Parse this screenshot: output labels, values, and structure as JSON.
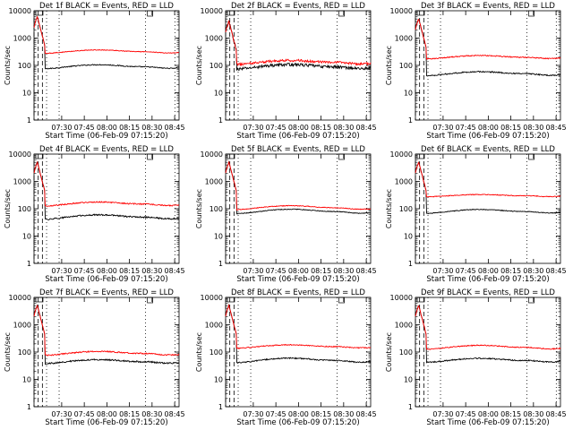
{
  "chart_data": [
    {
      "type": "line",
      "title": "Det 1f BLACK = Events, RED = LLD",
      "xlabel": "Start Time (06-Feb-09 07:15:20)",
      "ylabel": "Counts/sec",
      "y_scale": "log",
      "ylim": [
        1,
        10000
      ],
      "xlim": [
        0,
        5200
      ],
      "x_tick_labels": [
        "07:30",
        "07:45",
        "08:00",
        "08:15",
        "08:30",
        "08:45"
      ],
      "y_tick_labels": [
        "1",
        "10",
        "100",
        "1000",
        "10000"
      ],
      "grid": false,
      "series": [
        {
          "name": "Events",
          "color": "#000000",
          "baseline": 90,
          "peak": 6000,
          "noise": 0.04,
          "bump": 0.35
        },
        {
          "name": "LLD",
          "color": "#ff0000",
          "baseline": 320,
          "peak": 6000,
          "noise": 0.03,
          "bump": 0.3
        }
      ]
    },
    {
      "type": "line",
      "title": "Det 2f BLACK = Events, RED = LLD",
      "xlabel": "Start Time (06-Feb-09 07:15:20)",
      "ylabel": "Counts/sec",
      "y_scale": "log",
      "ylim": [
        1,
        10000
      ],
      "xlim": [
        0,
        5200
      ],
      "x_tick_labels": [
        "07:30",
        "07:45",
        "08:00",
        "08:15",
        "08:30",
        "08:45"
      ],
      "y_tick_labels": [
        "1",
        "10",
        "100",
        "1000",
        "10000"
      ],
      "grid": false,
      "series": [
        {
          "name": "Events",
          "color": "#000000",
          "baseline": 90,
          "peak": 4000,
          "noise": 0.12,
          "bump": 0.4
        },
        {
          "name": "LLD",
          "color": "#ff0000",
          "baseline": 130,
          "peak": 4000,
          "noise": 0.1,
          "bump": 0.35
        }
      ]
    },
    {
      "type": "line",
      "title": "Det 3f BLACK = Events, RED = LLD",
      "xlabel": "Start Time (06-Feb-09 07:15:20)",
      "ylabel": "Counts/sec",
      "y_scale": "log",
      "ylim": [
        1,
        10000
      ],
      "xlim": [
        0,
        5200
      ],
      "x_tick_labels": [
        "07:30",
        "07:45",
        "08:00",
        "08:15",
        "08:30",
        "08:45"
      ],
      "y_tick_labels": [
        "1",
        "10",
        "100",
        "1000",
        "10000"
      ],
      "grid": false,
      "series": [
        {
          "name": "Events",
          "color": "#000000",
          "baseline": 50,
          "peak": 5000,
          "noise": 0.05,
          "bump": 0.35
        },
        {
          "name": "LLD",
          "color": "#ff0000",
          "baseline": 200,
          "peak": 5000,
          "noise": 0.04,
          "bump": 0.3
        }
      ]
    },
    {
      "type": "line",
      "title": "Det 4f BLACK = Events, RED = LLD",
      "xlabel": "Start Time (06-Feb-09 07:15:20)",
      "ylabel": "Counts/sec",
      "y_scale": "log",
      "ylim": [
        1,
        10000
      ],
      "xlim": [
        0,
        5200
      ],
      "x_tick_labels": [
        "07:30",
        "07:45",
        "08:00",
        "08:15",
        "08:30",
        "08:45"
      ],
      "y_tick_labels": [
        "1",
        "10",
        "100",
        "1000",
        "10000"
      ],
      "grid": false,
      "series": [
        {
          "name": "Events",
          "color": "#000000",
          "baseline": 50,
          "peak": 5000,
          "noise": 0.06,
          "bump": 0.4
        },
        {
          "name": "LLD",
          "color": "#ff0000",
          "baseline": 150,
          "peak": 5000,
          "noise": 0.05,
          "bump": 0.35
        }
      ]
    },
    {
      "type": "line",
      "title": "Det 5f BLACK = Events, RED = LLD",
      "xlabel": "Start Time (06-Feb-09 07:15:20)",
      "ylabel": "Counts/sec",
      "y_scale": "log",
      "ylim": [
        1,
        10000
      ],
      "xlim": [
        0,
        5200
      ],
      "x_tick_labels": [
        "07:30",
        "07:45",
        "08:00",
        "08:15",
        "08:30",
        "08:45"
      ],
      "y_tick_labels": [
        "1",
        "10",
        "100",
        "1000",
        "10000"
      ],
      "grid": false,
      "series": [
        {
          "name": "Events",
          "color": "#000000",
          "baseline": 80,
          "peak": 5000,
          "noise": 0.03,
          "bump": 0.4
        },
        {
          "name": "LLD",
          "color": "#ff0000",
          "baseline": 110,
          "peak": 5000,
          "noise": 0.03,
          "bump": 0.35
        }
      ]
    },
    {
      "type": "line",
      "title": "Det 6f BLACK = Events, RED = LLD",
      "xlabel": "Start Time (06-Feb-09 07:15:20)",
      "ylabel": "Counts/sec",
      "y_scale": "log",
      "ylim": [
        1,
        10000
      ],
      "xlim": [
        0,
        5200
      ],
      "x_tick_labels": [
        "07:30",
        "07:45",
        "08:00",
        "08:15",
        "08:30",
        "08:45"
      ],
      "y_tick_labels": [
        "1",
        "10",
        "100",
        "1000",
        "10000"
      ],
      "grid": false,
      "series": [
        {
          "name": "Events",
          "color": "#000000",
          "baseline": 80,
          "peak": 5000,
          "noise": 0.03,
          "bump": 0.35
        },
        {
          "name": "LLD",
          "color": "#ff0000",
          "baseline": 300,
          "peak": 5000,
          "noise": 0.03,
          "bump": 0.2
        }
      ]
    },
    {
      "type": "line",
      "title": "Det 7f BLACK = Events, RED = LLD",
      "xlabel": "Start Time (06-Feb-09 07:15:20)",
      "ylabel": "Counts/sec",
      "y_scale": "log",
      "ylim": [
        1,
        10000
      ],
      "xlim": [
        0,
        5200
      ],
      "x_tick_labels": [
        "07:30",
        "07:45",
        "08:00",
        "08:15",
        "08:30",
        "08:45"
      ],
      "y_tick_labels": [
        "1",
        "10",
        "100",
        "1000",
        "10000"
      ],
      "grid": false,
      "series": [
        {
          "name": "Events",
          "color": "#000000",
          "baseline": 45,
          "peak": 5000,
          "noise": 0.06,
          "bump": 0.35
        },
        {
          "name": "LLD",
          "color": "#ff0000",
          "baseline": 90,
          "peak": 5000,
          "noise": 0.05,
          "bump": 0.35
        }
      ]
    },
    {
      "type": "line",
      "title": "Det 8f BLACK = Events, RED = LLD",
      "xlabel": "Start Time (06-Feb-09 07:15:20)",
      "ylabel": "Counts/sec",
      "y_scale": "log",
      "ylim": [
        1,
        10000
      ],
      "xlim": [
        0,
        5200
      ],
      "x_tick_labels": [
        "07:30",
        "07:45",
        "08:00",
        "08:15",
        "08:30",
        "08:45"
      ],
      "y_tick_labels": [
        "1",
        "10",
        "100",
        "1000",
        "10000"
      ],
      "grid": false,
      "series": [
        {
          "name": "Events",
          "color": "#000000",
          "baseline": 50,
          "peak": 5000,
          "noise": 0.05,
          "bump": 0.4
        },
        {
          "name": "LLD",
          "color": "#ff0000",
          "baseline": 160,
          "peak": 5000,
          "noise": 0.04,
          "bump": 0.3
        }
      ]
    },
    {
      "type": "line",
      "title": "Det 9f BLACK = Events, RED = LLD",
      "xlabel": "Start Time (06-Feb-09 07:15:20)",
      "ylabel": "Counts/sec",
      "y_scale": "log",
      "ylim": [
        1,
        10000
      ],
      "xlim": [
        0,
        5200
      ],
      "x_tick_labels": [
        "07:30",
        "07:45",
        "08:00",
        "08:15",
        "08:30",
        "08:45"
      ],
      "y_tick_labels": [
        "1",
        "10",
        "100",
        "1000",
        "10000"
      ],
      "grid": false,
      "series": [
        {
          "name": "Events",
          "color": "#000000",
          "baseline": 50,
          "peak": 5000,
          "noise": 0.05,
          "bump": 0.35
        },
        {
          "name": "LLD",
          "color": "#ff0000",
          "baseline": 150,
          "peak": 5000,
          "noise": 0.04,
          "bump": 0.35
        }
      ]
    }
  ]
}
